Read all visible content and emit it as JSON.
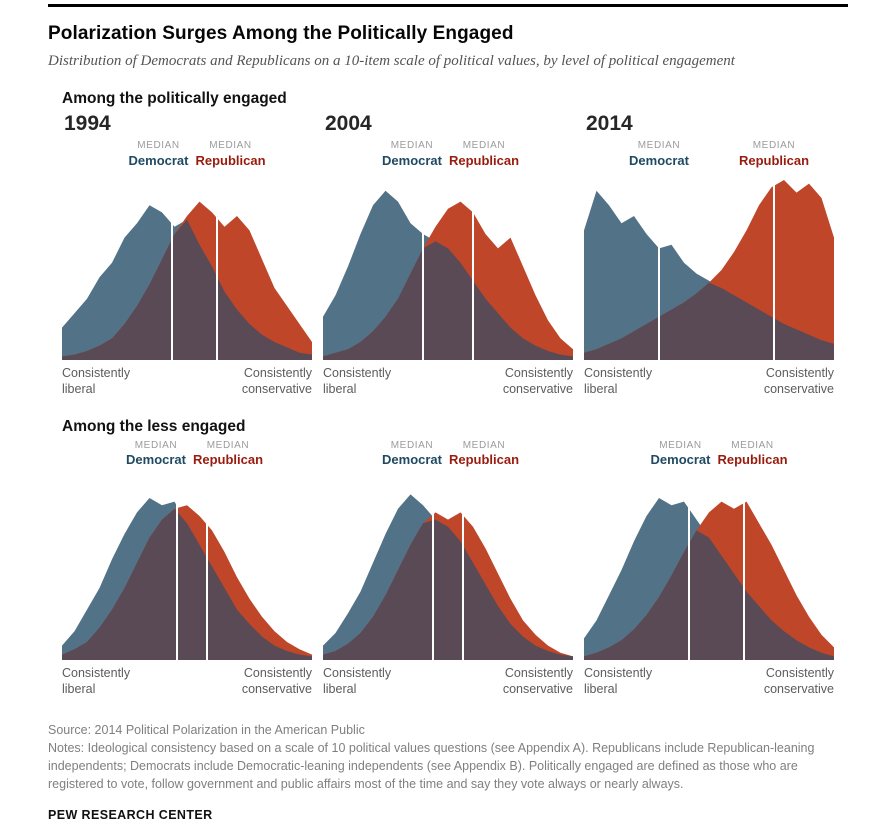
{
  "header": {
    "title": "Polarization Surges Among the Politically Engaged",
    "subtitle": "Distribution of Democrats and Republicans on a 10-item scale of political values, by level of political engagement"
  },
  "sections": [
    {
      "heading": "Among the politically engaged"
    },
    {
      "heading": "Among the less engaged"
    }
  ],
  "labels": {
    "median": "MEDIAN",
    "democrat": "Democrat",
    "republican": "Republican",
    "consistently": "Consistently",
    "liberal": "liberal",
    "conservative": "conservative"
  },
  "colors": {
    "democrat_area": "#527288",
    "republican_area": "#bf4629",
    "overlap_area": "#5a4a55",
    "median_line": "#ffffff",
    "democrat_label": "#1f4a61",
    "republican_label": "#991b0e"
  },
  "footer": {
    "source": "Source: 2014 Political Polarization in the American Public",
    "notes": "Notes: Ideological consistency based on a scale of 10 political values questions (see Appendix A). Republicans include Republican-leaning independents; Democrats include Democratic-leaning independents (see Appendix B). Politically engaged are defined as those who are registered to vote, follow government and public affairs most of the time and say they vote always or nearly always.",
    "brand": "PEW RESEARCH CENTER"
  },
  "chart_data": [
    {
      "type": "area",
      "group": "Among the politically engaged",
      "year": "1994",
      "xlabel_left": "Consistently liberal",
      "xlabel_right": "Consistently conservative",
      "x_bins": 21,
      "ylim": [
        0,
        10
      ],
      "series": [
        {
          "name": "Democrat",
          "values": [
            1.8,
            2.6,
            3.4,
            4.6,
            5.4,
            6.8,
            7.6,
            8.6,
            8.2,
            7.4,
            7.8,
            6.4,
            5.2,
            3.8,
            2.8,
            2.0,
            1.4,
            1.0,
            0.7,
            0.4,
            0.3
          ]
        },
        {
          "name": "Republican",
          "values": [
            0.2,
            0.3,
            0.5,
            0.8,
            1.2,
            2.0,
            3.0,
            4.2,
            5.6,
            7.0,
            8.0,
            8.8,
            8.2,
            7.4,
            8.0,
            7.2,
            5.6,
            4.0,
            3.0,
            2.0,
            1.0
          ]
        }
      ],
      "medians": {
        "democrat": 8.8,
        "republican": 12.4
      },
      "median_scale_max": 20
    },
    {
      "type": "area",
      "group": "Among the politically engaged",
      "year": "2004",
      "xlabel_left": "Consistently liberal",
      "xlabel_right": "Consistently conservative",
      "x_bins": 21,
      "ylim": [
        0,
        10
      ],
      "series": [
        {
          "name": "Democrat",
          "values": [
            2.4,
            3.6,
            5.2,
            7.0,
            8.6,
            9.4,
            8.8,
            7.6,
            7.0,
            6.6,
            6.2,
            5.4,
            4.4,
            3.4,
            2.6,
            1.8,
            1.2,
            0.8,
            0.5,
            0.3,
            0.2
          ]
        },
        {
          "name": "Republican",
          "values": [
            0.2,
            0.4,
            0.6,
            1.0,
            1.6,
            2.4,
            3.4,
            4.8,
            6.2,
            7.4,
            8.4,
            8.8,
            8.2,
            7.0,
            6.2,
            6.8,
            5.2,
            3.6,
            2.2,
            1.2,
            0.6
          ]
        }
      ],
      "medians": {
        "democrat": 8.0,
        "republican": 12.0
      },
      "median_scale_max": 20
    },
    {
      "type": "area",
      "group": "Among the politically engaged",
      "year": "2014",
      "xlabel_left": "Consistently liberal",
      "xlabel_right": "Consistently conservative",
      "x_bins": 21,
      "ylim": [
        0,
        10
      ],
      "series": [
        {
          "name": "Democrat",
          "values": [
            7.2,
            9.4,
            8.6,
            7.6,
            8.0,
            7.0,
            6.2,
            6.4,
            5.4,
            4.8,
            4.4,
            4.0,
            3.6,
            3.2,
            2.8,
            2.4,
            2.0,
            1.7,
            1.4,
            1.1,
            0.9
          ]
        },
        {
          "name": "Republican",
          "values": [
            0.4,
            0.6,
            0.9,
            1.2,
            1.6,
            2.0,
            2.4,
            2.8,
            3.2,
            3.7,
            4.3,
            5.0,
            6.0,
            7.2,
            8.6,
            9.6,
            10.0,
            9.3,
            9.8,
            9.0,
            6.8
          ]
        }
      ],
      "medians": {
        "democrat": 6.0,
        "republican": 15.2
      },
      "median_scale_max": 20
    },
    {
      "type": "area",
      "group": "Among the less engaged",
      "year": "1994",
      "xlabel_left": "Consistently liberal",
      "xlabel_right": "Consistently conservative",
      "x_bins": 21,
      "ylim": [
        0,
        10
      ],
      "series": [
        {
          "name": "Democrat",
          "values": [
            0.8,
            1.6,
            2.8,
            4.0,
            5.6,
            7.0,
            8.2,
            9.0,
            8.6,
            8.8,
            7.6,
            6.4,
            5.2,
            4.0,
            2.8,
            2.0,
            1.3,
            0.8,
            0.5,
            0.3,
            0.2
          ]
        },
        {
          "name": "Republican",
          "values": [
            0.3,
            0.6,
            1.0,
            1.8,
            2.8,
            4.0,
            5.4,
            6.8,
            7.8,
            8.4,
            8.6,
            8.0,
            7.2,
            6.0,
            4.6,
            3.4,
            2.4,
            1.6,
            1.0,
            0.6,
            0.3
          ]
        }
      ],
      "medians": {
        "democrat": 9.2,
        "republican": 11.6
      },
      "median_scale_max": 20
    },
    {
      "type": "area",
      "group": "Among the less engaged",
      "year": "2004",
      "xlabel_left": "Consistently liberal",
      "xlabel_right": "Consistently conservative",
      "x_bins": 21,
      "ylim": [
        0,
        10
      ],
      "series": [
        {
          "name": "Democrat",
          "values": [
            0.8,
            1.5,
            2.6,
            3.8,
            5.4,
            7.0,
            8.4,
            9.2,
            8.6,
            7.8,
            7.4,
            6.6,
            5.4,
            4.2,
            3.0,
            2.0,
            1.3,
            0.8,
            0.5,
            0.3,
            0.2
          ]
        },
        {
          "name": "Republican",
          "values": [
            0.3,
            0.5,
            0.9,
            1.5,
            2.4,
            3.6,
            5.0,
            6.4,
            7.6,
            8.2,
            7.8,
            8.2,
            7.4,
            6.2,
            4.8,
            3.4,
            2.2,
            1.4,
            0.8,
            0.4,
            0.2
          ]
        }
      ],
      "medians": {
        "democrat": 8.8,
        "republican": 11.2
      },
      "median_scale_max": 20
    },
    {
      "type": "area",
      "group": "Among the less engaged",
      "year": "2014",
      "xlabel_left": "Consistently liberal",
      "xlabel_right": "Consistently conservative",
      "x_bins": 21,
      "ylim": [
        0,
        10
      ],
      "series": [
        {
          "name": "Democrat",
          "values": [
            1.2,
            2.2,
            3.6,
            5.0,
            6.6,
            8.0,
            9.0,
            8.6,
            8.8,
            7.8,
            6.8,
            5.8,
            4.8,
            3.8,
            3.0,
            2.2,
            1.6,
            1.1,
            0.7,
            0.4,
            0.2
          ]
        },
        {
          "name": "Republican",
          "values": [
            0.2,
            0.4,
            0.7,
            1.1,
            1.7,
            2.5,
            3.5,
            4.7,
            6.0,
            7.2,
            8.2,
            8.8,
            8.4,
            8.8,
            7.6,
            6.4,
            5.0,
            3.6,
            2.4,
            1.4,
            0.7
          ]
        }
      ],
      "medians": {
        "democrat": 8.4,
        "republican": 12.8
      },
      "median_scale_max": 20
    }
  ]
}
